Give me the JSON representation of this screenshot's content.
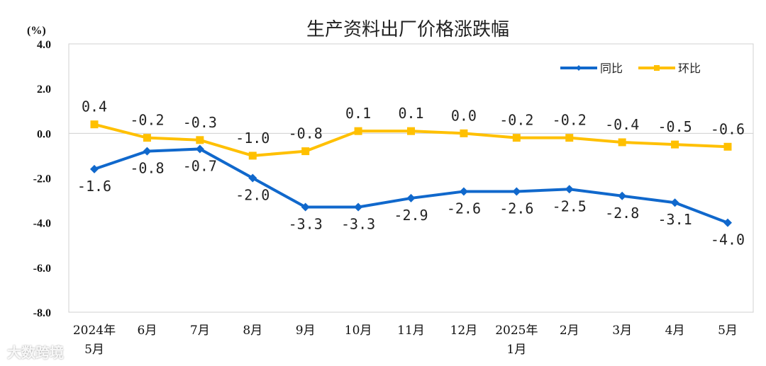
{
  "chart_data": {
    "type": "line",
    "title": "生产资料出厂价格涨跌幅",
    "ylabel": "(%)",
    "ylim": [
      -8.0,
      4.0
    ],
    "yticks": [
      "4.0",
      "2.0",
      "0.0",
      "-2.0",
      "-4.0",
      "-6.0",
      "-8.0"
    ],
    "grid": false,
    "legend_position": "top-right",
    "categories": [
      "2024年\n5月",
      "6月",
      "7月",
      "8月",
      "9月",
      "10月",
      "11月",
      "12月",
      "2025年\n1月",
      "2月",
      "3月",
      "4月",
      "5月"
    ],
    "series": [
      {
        "name": "同比",
        "color": "#1068CC",
        "marker": "diamond",
        "values": [
          -1.6,
          -0.8,
          -0.7,
          -2.0,
          -3.3,
          -3.3,
          -2.9,
          -2.6,
          -2.6,
          -2.5,
          -2.8,
          -3.1,
          -4.0
        ]
      },
      {
        "name": "环比",
        "color": "#FFC000",
        "marker": "square",
        "values": [
          0.4,
          -0.2,
          -0.3,
          -1.0,
          -0.8,
          0.1,
          0.1,
          0.0,
          -0.2,
          -0.2,
          -0.4,
          -0.5,
          -0.6
        ]
      }
    ]
  },
  "watermark": "大数跨境"
}
